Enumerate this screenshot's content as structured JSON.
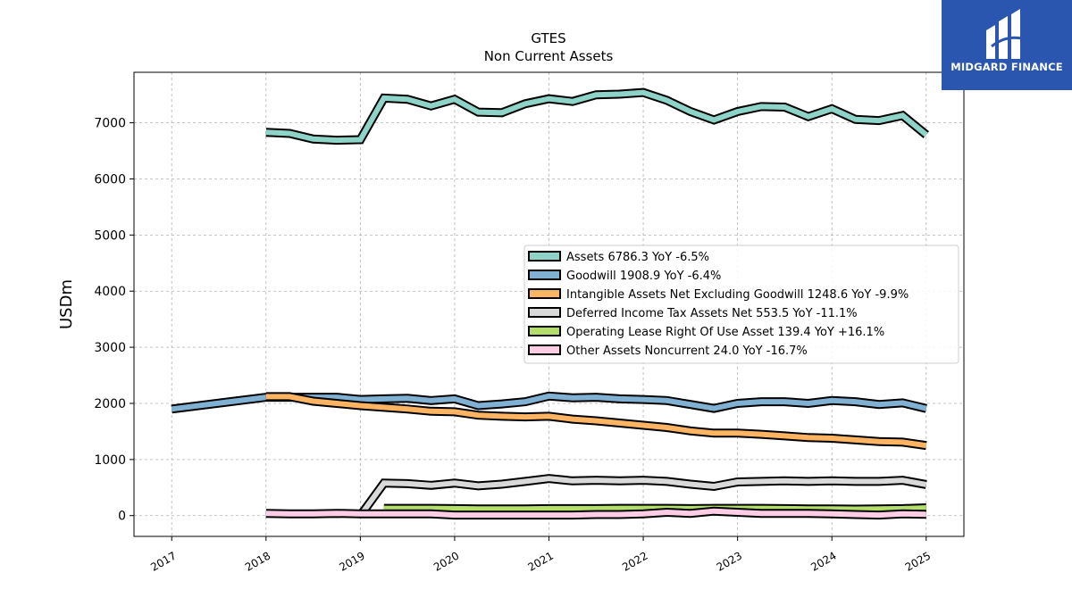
{
  "brand": {
    "name": "MIDGARD FINANCE",
    "color": "#2b56b0"
  },
  "chart_data": {
    "type": "line",
    "title": "GTES",
    "subtitle": "Non Current  Assets",
    "ylabel": "USDm",
    "xlabel": "",
    "x_ticks": [
      "2017",
      "2018",
      "2019",
      "2020",
      "2021",
      "2022",
      "2023",
      "2024",
      "2025"
    ],
    "y_ticks": [
      0,
      1000,
      2000,
      3000,
      4000,
      5000,
      6000,
      7000
    ],
    "xlim": [
      2016.6,
      2025.4
    ],
    "ylim": [
      -370,
      7900
    ],
    "grid": true,
    "legend_position": "center-right",
    "series": [
      {
        "name": "Assets  6786.3 YoY -6.5%",
        "color": "#8dd3c7",
        "x": [
          2018.0,
          2018.25,
          2018.5,
          2018.75,
          2019.0,
          2019.25,
          2019.5,
          2019.75,
          2020.0,
          2020.25,
          2020.5,
          2020.75,
          2021.0,
          2021.25,
          2021.5,
          2021.75,
          2022.0,
          2022.25,
          2022.5,
          2022.75,
          2023.0,
          2023.25,
          2023.5,
          2023.75,
          2024.0,
          2024.25,
          2024.5,
          2024.75,
          2025.0
        ],
        "values": [
          6830,
          6810,
          6710,
          6690,
          6700,
          7440,
          7420,
          7300,
          7420,
          7190,
          7180,
          7340,
          7430,
          7380,
          7500,
          7510,
          7540,
          7400,
          7200,
          7050,
          7200,
          7290,
          7280,
          7110,
          7250,
          7060,
          7040,
          7130,
          6786
        ]
      },
      {
        "name": "Goodwill  1908.9 YoY -6.4%",
        "color": "#80b1d3",
        "x": [
          2017.0,
          2018.0,
          2018.25,
          2018.5,
          2018.75,
          2019.0,
          2019.25,
          2019.5,
          2019.75,
          2020.0,
          2020.25,
          2020.5,
          2020.75,
          2021.0,
          2021.25,
          2021.5,
          2021.75,
          2022.0,
          2022.25,
          2022.5,
          2022.75,
          2023.0,
          2023.25,
          2023.5,
          2023.75,
          2024.0,
          2024.25,
          2024.5,
          2024.75,
          2025.0
        ],
        "values": [
          1900,
          2110,
          2110,
          2110,
          2110,
          2070,
          2080,
          2090,
          2050,
          2080,
          1960,
          1990,
          2030,
          2130,
          2100,
          2110,
          2080,
          2070,
          2050,
          1980,
          1910,
          2000,
          2030,
          2030,
          2000,
          2050,
          2030,
          1980,
          2010,
          1909
        ]
      },
      {
        "name": "Intangible Assets Net Excluding Goodwill  1248.6 YoY -9.9%",
        "color": "#fdb462",
        "x": [
          2018.0,
          2018.25,
          2018.5,
          2018.75,
          2019.0,
          2019.25,
          2019.5,
          2019.75,
          2020.0,
          2020.25,
          2020.5,
          2020.75,
          2021.0,
          2021.25,
          2021.5,
          2021.75,
          2022.0,
          2022.25,
          2022.5,
          2022.75,
          2023.0,
          2023.25,
          2023.5,
          2023.75,
          2024.0,
          2024.25,
          2024.5,
          2024.75,
          2025.0
        ],
        "values": [
          2120,
          2120,
          2040,
          2000,
          1960,
          1930,
          1900,
          1860,
          1850,
          1790,
          1770,
          1760,
          1770,
          1720,
          1690,
          1650,
          1610,
          1570,
          1510,
          1470,
          1470,
          1450,
          1420,
          1390,
          1380,
          1350,
          1320,
          1310,
          1249
        ]
      },
      {
        "name": "Deferred Income Tax Assets Net  553.5 YoY -11.1%",
        "color": "#d9d9d9",
        "x": [
          2019.0,
          2019.25,
          2019.5,
          2019.75,
          2020.0,
          2020.25,
          2020.5,
          2020.75,
          2021.0,
          2021.25,
          2021.5,
          2021.75,
          2022.0,
          2022.25,
          2022.5,
          2022.75,
          2023.0,
          2023.25,
          2023.5,
          2023.75,
          2024.0,
          2024.25,
          2024.5,
          2024.75,
          2025.0
        ],
        "values": [
          0,
          580,
          570,
          540,
          580,
          530,
          560,
          610,
          660,
          620,
          630,
          620,
          630,
          610,
          560,
          520,
          600,
          610,
          620,
          610,
          620,
          610,
          610,
          630,
          554
        ]
      },
      {
        "name": "Operating Lease Right Of Use Asset  139.4 YoY +16.1%",
        "color": "#b3de69",
        "x": [
          2019.25,
          2019.5,
          2019.75,
          2020.0,
          2020.25,
          2020.5,
          2020.75,
          2021.0,
          2021.25,
          2021.5,
          2021.75,
          2022.0,
          2022.25,
          2022.5,
          2022.75,
          2023.0,
          2023.25,
          2023.5,
          2023.75,
          2024.0,
          2024.25,
          2024.5,
          2024.75,
          2025.0
        ],
        "values": [
          130,
          130,
          130,
          125,
          120,
          120,
          120,
          125,
          125,
          125,
          130,
          130,
          130,
          125,
          130,
          130,
          130,
          125,
          120,
          120,
          115,
          120,
          125,
          139
        ]
      },
      {
        "name": "Other Assets Noncurrent  24.0 YoY -16.7%",
        "color": "#fccde5",
        "x": [
          2018.0,
          2018.25,
          2018.5,
          2018.75,
          2019.0,
          2019.25,
          2019.5,
          2019.75,
          2020.0,
          2020.25,
          2020.5,
          2020.75,
          2021.0,
          2021.25,
          2021.5,
          2021.75,
          2022.0,
          2022.25,
          2022.5,
          2022.75,
          2023.0,
          2023.25,
          2023.5,
          2023.75,
          2024.0,
          2024.25,
          2024.5,
          2024.75,
          2025.0
        ],
        "values": [
          40,
          30,
          30,
          40,
          30,
          30,
          30,
          30,
          10,
          10,
          10,
          10,
          10,
          10,
          20,
          20,
          30,
          60,
          40,
          80,
          60,
          40,
          40,
          40,
          30,
          20,
          10,
          30,
          24
        ]
      }
    ]
  }
}
